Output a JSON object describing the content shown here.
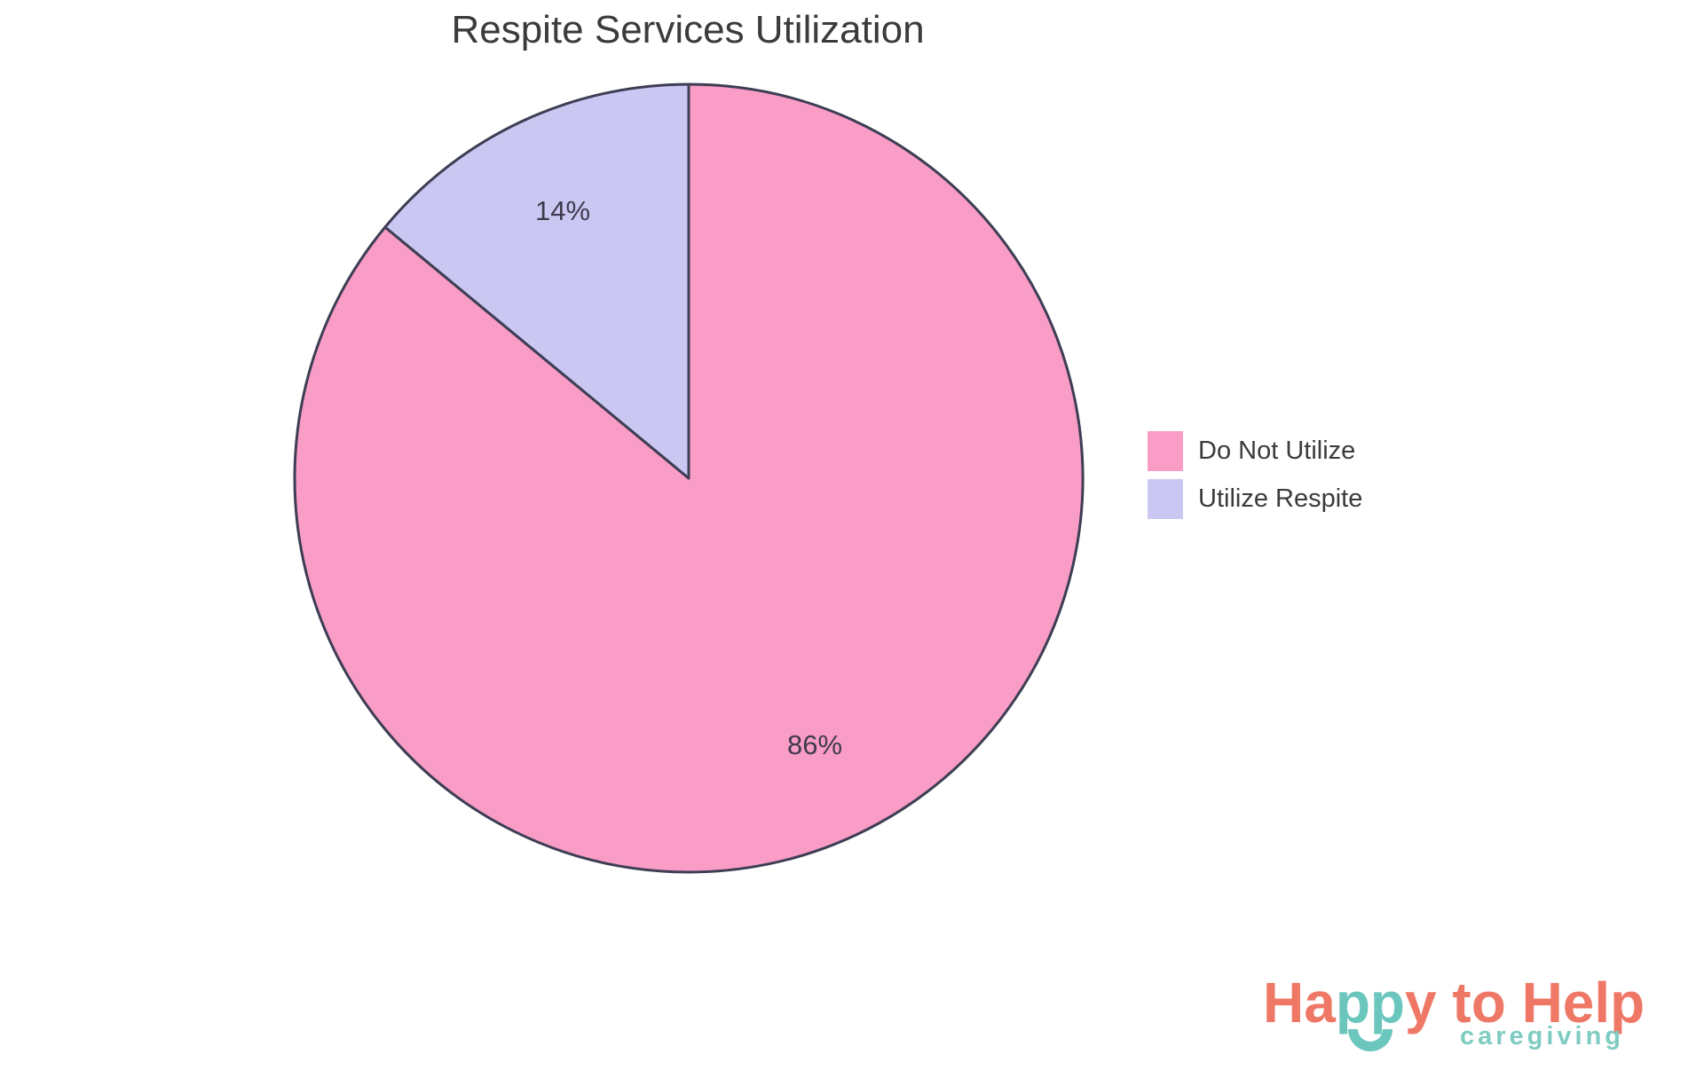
{
  "chart_data": {
    "type": "pie",
    "title": "Respite Services Utilization",
    "categories": [
      "Do Not Utilize",
      "Utilize Respite"
    ],
    "values": [
      86,
      14
    ],
    "slices": [
      {
        "label": "Do Not Utilize",
        "value": 86,
        "pct_label": "86%",
        "color": "#F99CC6"
      },
      {
        "label": "Utilize Respite",
        "value": 14,
        "pct_label": "14%",
        "color": "#CAC8F3"
      }
    ],
    "start_angle_deg": 0,
    "direction": "clockwise",
    "legend_position": "right",
    "outline_color": "#3D3D54",
    "title_color": "#3B3B3B",
    "label_color": "#3F3A4E"
  },
  "legend": {
    "items": [
      {
        "label": "Do Not Utilize",
        "color": "#F99CC6"
      },
      {
        "label": "Utilize Respite",
        "color": "#CAC8F3"
      }
    ]
  },
  "logo": {
    "word_part_1": "Ha",
    "word_part_2": "pp",
    "word_part_3": "y to Help",
    "subtitle": "caregiving",
    "coral": "#EF7765",
    "teal": "#6BC6BE",
    "subtitle_color": "#7FCCC2"
  }
}
